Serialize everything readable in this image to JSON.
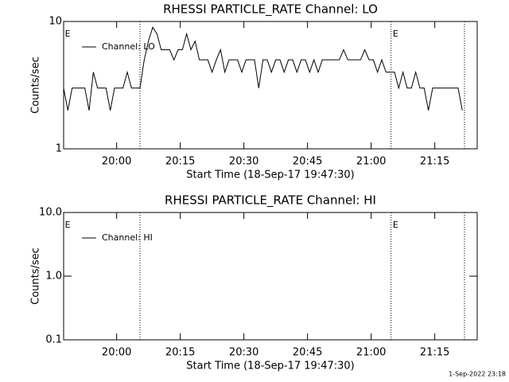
{
  "chart_data": [
    {
      "type": "line",
      "title": "RHESSI PARTICLE_RATE Channel: LO",
      "xlabel": "Start Time (18-Sep-17 19:47:30)",
      "ylabel": "Counts/sec",
      "xlim": [
        0,
        97.5
      ],
      "xticks": [
        {
          "value": 12.5,
          "label": "20:00"
        },
        {
          "value": 27.5,
          "label": "20:15"
        },
        {
          "value": 42.5,
          "label": "20:30"
        },
        {
          "value": 57.5,
          "label": "20:45"
        },
        {
          "value": 72.5,
          "label": "21:00"
        },
        {
          "value": 87.5,
          "label": "21:15"
        }
      ],
      "ylim": [
        1,
        10
      ],
      "yticks": [
        1,
        10
      ],
      "log_y": true,
      "legend": "upper left",
      "x": [
        0,
        1,
        2,
        3,
        4,
        5,
        6,
        7,
        8,
        9,
        10,
        11,
        12,
        13,
        14,
        15,
        16,
        17,
        18,
        19,
        20,
        21,
        22,
        23,
        24,
        25,
        26,
        27,
        28,
        29,
        30,
        31,
        32,
        33,
        34,
        35,
        36,
        37,
        38,
        39,
        40,
        41,
        42,
        43,
        44,
        45,
        46,
        47,
        48,
        49,
        50,
        51,
        52,
        53,
        54,
        55,
        56,
        57,
        58,
        59,
        60,
        61,
        62,
        63,
        64,
        65,
        66,
        67,
        68,
        69,
        70,
        71,
        72,
        73,
        74,
        75,
        76,
        77,
        78,
        79,
        80,
        81,
        82,
        83,
        84,
        85,
        86,
        87,
        88,
        89,
        90,
        91,
        92,
        93,
        94
      ],
      "series": [
        {
          "name": "Channel: LO",
          "color": "#000000",
          "values": [
            3,
            2,
            3,
            3,
            3,
            3,
            2,
            4,
            3,
            3,
            3,
            2,
            3,
            3,
            3,
            4,
            3,
            3,
            3,
            5,
            7,
            9,
            8,
            6,
            6,
            6,
            5,
            6,
            6,
            8,
            6,
            7,
            5,
            5,
            5,
            4,
            5,
            6,
            4,
            5,
            5,
            5,
            4,
            5,
            5,
            5,
            3,
            5,
            5,
            4,
            5,
            5,
            4,
            5,
            5,
            4,
            5,
            5,
            4,
            5,
            4,
            5,
            5,
            5,
            5,
            5,
            6,
            5,
            5,
            5,
            5,
            6,
            5,
            5,
            4,
            5,
            4,
            4,
            4,
            3,
            4,
            3,
            3,
            4,
            3,
            3,
            2,
            3,
            3,
            3,
            3,
            3,
            3,
            3,
            2
          ]
        }
      ],
      "vlines": [
        18,
        77.2,
        94.5
      ],
      "annotations": [
        {
          "text": "E",
          "x": 0.3
        },
        {
          "text": "E",
          "x": 77.6
        }
      ]
    },
    {
      "type": "line",
      "title": "RHESSI PARTICLE_RATE Channel: HI",
      "xlabel": "Start Time (18-Sep-17 19:47:30)",
      "ylabel": "Counts/sec",
      "xlim": [
        0,
        97.5
      ],
      "xticks": [
        {
          "value": 12.5,
          "label": "20:00"
        },
        {
          "value": 27.5,
          "label": "20:15"
        },
        {
          "value": 42.5,
          "label": "20:30"
        },
        {
          "value": 57.5,
          "label": "20:45"
        },
        {
          "value": 72.5,
          "label": "21:00"
        },
        {
          "value": 87.5,
          "label": "21:15"
        }
      ],
      "ylim": [
        0.1,
        10
      ],
      "yticks": [
        0.1,
        {
          "value": 1,
          "label": "1.0"
        },
        {
          "value": 10,
          "label": "10.0"
        }
      ],
      "log_y": true,
      "legend": "upper left",
      "x": [],
      "series": [
        {
          "name": "Channel: HI",
          "color": "#000000",
          "values": []
        }
      ],
      "vlines": [
        18,
        77.2,
        94.5
      ],
      "annotations": [
        {
          "text": "E",
          "x": 0.3
        },
        {
          "text": "E",
          "x": 77.6
        }
      ]
    }
  ],
  "footer": "1-Sep-2022 23:18"
}
